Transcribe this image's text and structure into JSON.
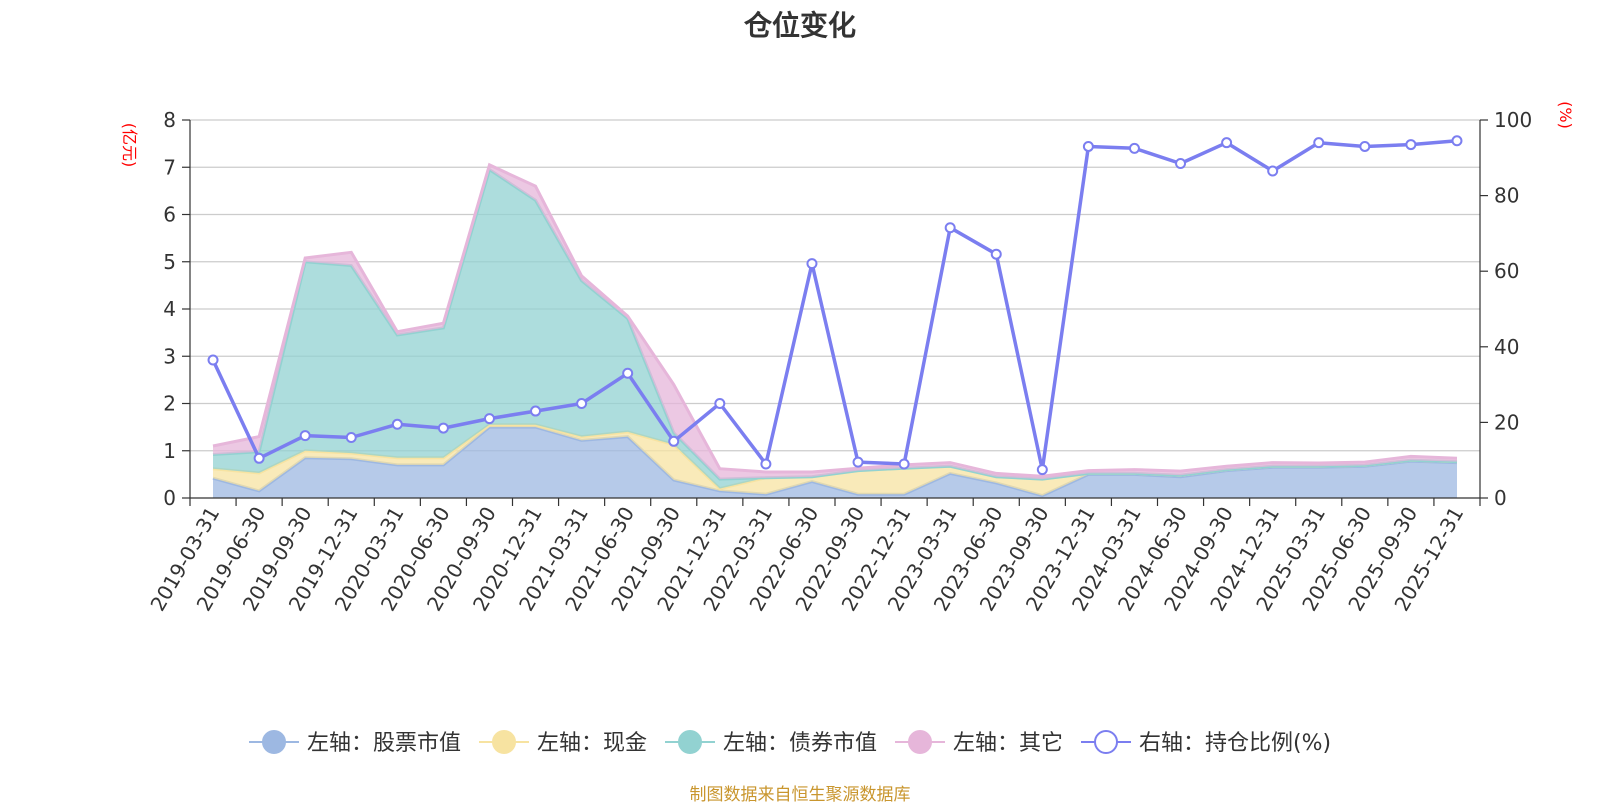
{
  "chart_data": {
    "type": "area",
    "title": "仓位变化",
    "source_note": "制图数据来自恒生聚源数据库",
    "left_axis": {
      "unit": "(亿元)",
      "ylim": [
        0,
        8
      ],
      "ticks": [
        "0",
        "1",
        "2",
        "3",
        "4",
        "5",
        "6",
        "7",
        "8"
      ]
    },
    "right_axis": {
      "unit": "(%)",
      "ylim": [
        0,
        100
      ],
      "ticks": [
        "0",
        "20",
        "40",
        "60",
        "80",
        "100"
      ]
    },
    "categories": [
      "2019-03-31",
      "2019-06-30",
      "2019-09-30",
      "2019-12-31",
      "2020-03-31",
      "2020-06-30",
      "2020-09-30",
      "2020-12-31",
      "2021-03-31",
      "2021-06-30",
      "2021-09-30",
      "2021-12-31",
      "2022-03-31",
      "2022-06-30",
      "2022-09-30",
      "2022-12-31",
      "2023-03-31",
      "2023-06-30",
      "2023-09-30",
      "2023-12-31",
      "2024-03-31",
      "2024-06-30",
      "2024-09-30",
      "2024-12-31",
      "2025-03-31",
      "2025-06-30",
      "2025-09-30",
      "2025-12-31"
    ],
    "stacked_series": [
      {
        "name": "左轴：股票市值",
        "color": "#9db8e2",
        "values": [
          0.42,
          0.15,
          0.85,
          0.83,
          0.7,
          0.7,
          1.5,
          1.5,
          1.22,
          1.3,
          0.38,
          0.15,
          0.08,
          0.35,
          0.08,
          0.08,
          0.52,
          0.32,
          0.05,
          0.5,
          0.5,
          0.45,
          0.58,
          0.65,
          0.65,
          0.67,
          0.78,
          0.75
        ]
      },
      {
        "name": "左轴：现金",
        "color": "#f7e3a1",
        "values": [
          0.2,
          0.38,
          0.15,
          0.12,
          0.15,
          0.15,
          0.05,
          0.05,
          0.08,
          0.1,
          0.75,
          0.05,
          0.35,
          0.1,
          0.5,
          0.55,
          0.15,
          0.13,
          0.35,
          0.02,
          0.02,
          0.03,
          0.02,
          0.02,
          0.02,
          0.02,
          0.02,
          0.02
        ]
      },
      {
        "name": "左轴：债券市值",
        "color": "#92d2d1",
        "values": [
          0.3,
          0.45,
          4.0,
          3.97,
          2.6,
          2.75,
          5.4,
          4.75,
          3.3,
          2.4,
          0.25,
          0.2,
          0.0,
          0.0,
          0.0,
          0.0,
          0.0,
          0.0,
          0.0,
          0.0,
          0.0,
          0.0,
          0.0,
          0.0,
          0.0,
          0.0,
          0.0,
          0.0
        ]
      },
      {
        "name": "左轴：其它",
        "color": "#e6b6da",
        "values": [
          0.18,
          0.32,
          0.08,
          0.28,
          0.07,
          0.1,
          0.1,
          0.3,
          0.1,
          0.05,
          1.02,
          0.22,
          0.12,
          0.1,
          0.05,
          0.07,
          0.08,
          0.07,
          0.06,
          0.06,
          0.08,
          0.09,
          0.07,
          0.08,
          0.07,
          0.07,
          0.08,
          0.07
        ]
      }
    ],
    "line_series": {
      "name": "右轴：持仓比例(%)",
      "color": "#7b7ef0",
      "axis": "right",
      "values": [
        36.5,
        10.5,
        16.5,
        16,
        19.5,
        18.5,
        21,
        23,
        25,
        33,
        15,
        25,
        9,
        62,
        9.5,
        9,
        71.5,
        64.5,
        7.5,
        93,
        92.5,
        88.5,
        94,
        86.5,
        94,
        93,
        93.5,
        94.5
      ]
    },
    "legend_position": "bottom"
  }
}
